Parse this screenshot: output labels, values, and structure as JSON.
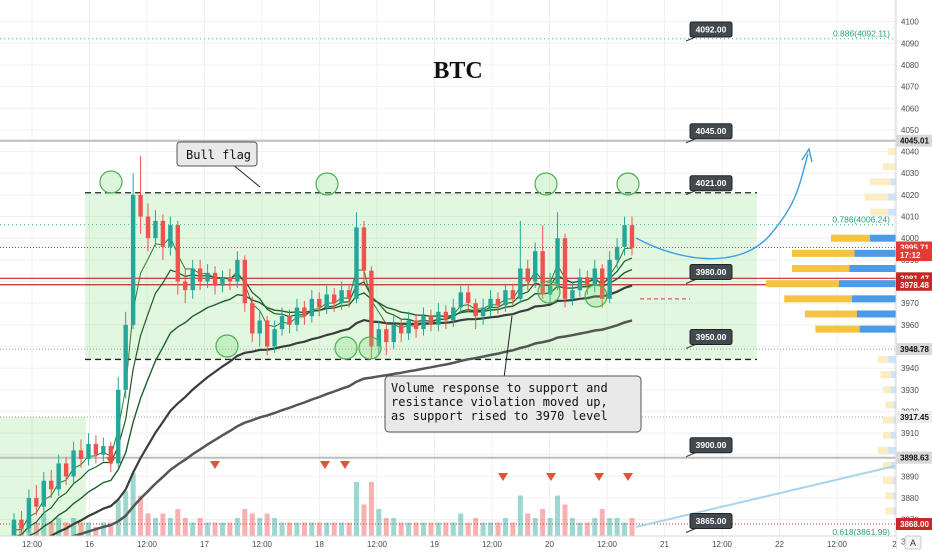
{
  "chart_data": {
    "type": "candlestick",
    "title": "BTC",
    "ylim": [
      3856,
      4110
    ],
    "y_ticks": [
      3860,
      3870,
      3880,
      3890,
      3900,
      3910,
      3920,
      3930,
      3940,
      3950,
      3960,
      3970,
      3980,
      3990,
      4000,
      4010,
      4020,
      4030,
      4040,
      4050,
      4060,
      4070,
      4080,
      4090,
      4100
    ],
    "x_ticks": [
      "12:00",
      "16",
      "12:00",
      "17",
      "12:00",
      "18",
      "12:00",
      "19",
      "12:00",
      "20",
      "12:00",
      "21",
      "12:00",
      "22",
      "12:00",
      "2"
    ],
    "grid": true,
    "price_scale_labels": [
      {
        "value": 4045.01,
        "text": "4045.01",
        "bg": "#d9d9d9",
        "fg": "#111111"
      },
      {
        "value": 3995.71,
        "text": "3995.71",
        "bg": "#e53935",
        "fg": "#ffffff"
      },
      {
        "value": 3992.2,
        "text": "17:12",
        "bg": "#e53935",
        "fg": "#ffffff"
      },
      {
        "value": 3981.47,
        "text": "3981.47",
        "bg": "#c62828",
        "fg": "#ffffff"
      },
      {
        "value": 3978.48,
        "text": "3978.48",
        "bg": "#c62828",
        "fg": "#ffffff"
      },
      {
        "value": 3948.78,
        "text": "3948.78",
        "bg": "#d9d9d9",
        "fg": "#111111"
      },
      {
        "value": 3917.45,
        "text": "3917.45",
        "bg": "#eeeeee",
        "fg": "#111111"
      },
      {
        "value": 3898.63,
        "text": "3898.63",
        "bg": "#d9d9d9",
        "fg": "#111111"
      },
      {
        "value": 3868.0,
        "text": "3868.00",
        "bg": "#c62828",
        "fg": "#ffffff"
      }
    ],
    "level_flags": [
      {
        "value": 4092.0,
        "text": "4092.00"
      },
      {
        "value": 4045.0,
        "text": "4045.00"
      },
      {
        "value": 4021.0,
        "text": "4021.00"
      },
      {
        "value": 3980.0,
        "text": "3980.00"
      },
      {
        "value": 3950.0,
        "text": "3950.00"
      },
      {
        "value": 3900.0,
        "text": "3900.00"
      },
      {
        "value": 3865.0,
        "text": "3865.00"
      }
    ],
    "fib_levels": [
      {
        "value": 4092.11,
        "text": "0.886(4092.11)"
      },
      {
        "value": 4006.24,
        "text": "0.786(4006.24)"
      },
      {
        "value": 3861.99,
        "text": "0.618(3861.99)"
      }
    ],
    "horizontal_lines": [
      {
        "value": 4045.01,
        "color": "#bdbdbd",
        "width": 2,
        "dash": ""
      },
      {
        "value": 4021.0,
        "color": "#222222",
        "width": 1.3,
        "dash": "6,4"
      },
      {
        "value": 3944.0,
        "color": "#222222",
        "width": 1.3,
        "dash": "6,4"
      },
      {
        "value": 3981.47,
        "color": "#c62828",
        "width": 1.2,
        "dash": ""
      },
      {
        "value": 3978.48,
        "color": "#c62828",
        "width": 1.2,
        "dash": ""
      },
      {
        "value": 3898.63,
        "color": "#bdbdbd",
        "width": 2,
        "dash": ""
      },
      {
        "value": 3868.0,
        "color": "#c62828",
        "width": 1,
        "dash": "1,2"
      },
      {
        "value": 3917.45,
        "color": "#9e9e9e",
        "width": 1,
        "dash": "1,2"
      },
      {
        "value": 3948.78,
        "color": "#9e9e9e",
        "width": 1,
        "dash": "1,2"
      },
      {
        "value": 3995.71,
        "color": "#e53935",
        "width": 1,
        "dash": "1,2"
      }
    ],
    "annotations": [
      {
        "text": "Bull flag"
      },
      {
        "lines": [
          "Volume response to support and",
          "resistance violation moved up,",
          "as support rised to 3970 level"
        ]
      }
    ],
    "candles": [
      {
        "o": 3862,
        "c": 3870,
        "h": 3873,
        "l": 3860
      },
      {
        "o": 3870,
        "c": 3866,
        "h": 3874,
        "l": 3862
      },
      {
        "o": 3866,
        "c": 3880,
        "h": 3884,
        "l": 3864
      },
      {
        "o": 3880,
        "c": 3876,
        "h": 3886,
        "l": 3872
      },
      {
        "o": 3876,
        "c": 3888,
        "h": 3892,
        "l": 3873
      },
      {
        "o": 3888,
        "c": 3884,
        "h": 3893,
        "l": 3880
      },
      {
        "o": 3884,
        "c": 3896,
        "h": 3900,
        "l": 3881
      },
      {
        "o": 3896,
        "c": 3890,
        "h": 3899,
        "l": 3886
      },
      {
        "o": 3890,
        "c": 3902,
        "h": 3906,
        "l": 3887
      },
      {
        "o": 3902,
        "c": 3898,
        "h": 3907,
        "l": 3894
      },
      {
        "o": 3898,
        "c": 3905,
        "h": 3910,
        "l": 3895
      },
      {
        "o": 3905,
        "c": 3900,
        "h": 3909,
        "l": 3896
      },
      {
        "o": 3900,
        "c": 3904,
        "h": 3908,
        "l": 3897
      },
      {
        "o": 3904,
        "c": 3896,
        "h": 3906,
        "l": 3892
      },
      {
        "o": 3896,
        "c": 3930,
        "h": 3936,
        "l": 3894
      },
      {
        "o": 3930,
        "c": 3960,
        "h": 3966,
        "l": 3926
      },
      {
        "o": 3960,
        "c": 4020,
        "h": 4030,
        "l": 3958
      },
      {
        "o": 4020,
        "c": 4010,
        "h": 4038,
        "l": 4002
      },
      {
        "o": 4010,
        "c": 4000,
        "h": 4016,
        "l": 3994
      },
      {
        "o": 4000,
        "c": 4008,
        "h": 4013,
        "l": 3996
      },
      {
        "o": 4008,
        "c": 3996,
        "h": 4011,
        "l": 3990
      },
      {
        "o": 3996,
        "c": 4006,
        "h": 4010,
        "l": 3992
      },
      {
        "o": 4006,
        "c": 3980,
        "h": 4008,
        "l": 3974
      },
      {
        "o": 3980,
        "c": 3976,
        "h": 3986,
        "l": 3970
      },
      {
        "o": 3976,
        "c": 3986,
        "h": 3990,
        "l": 3972
      },
      {
        "o": 3986,
        "c": 3980,
        "h": 3990,
        "l": 3976
      },
      {
        "o": 3980,
        "c": 3984,
        "h": 3988,
        "l": 3977
      },
      {
        "o": 3984,
        "c": 3978,
        "h": 3987,
        "l": 3974
      },
      {
        "o": 3978,
        "c": 3982,
        "h": 3985,
        "l": 3975
      },
      {
        "o": 3982,
        "c": 3980,
        "h": 3986,
        "l": 3976
      },
      {
        "o": 3980,
        "c": 3990,
        "h": 3994,
        "l": 3977
      },
      {
        "o": 3990,
        "c": 3970,
        "h": 3992,
        "l": 3966
      },
      {
        "o": 3970,
        "c": 3956,
        "h": 3973,
        "l": 3952
      },
      {
        "o": 3956,
        "c": 3962,
        "h": 3966,
        "l": 3950
      },
      {
        "o": 3962,
        "c": 3950,
        "h": 3964,
        "l": 3946
      },
      {
        "o": 3950,
        "c": 3958,
        "h": 3962,
        "l": 3947
      },
      {
        "o": 3958,
        "c": 3964,
        "h": 3968,
        "l": 3955
      },
      {
        "o": 3964,
        "c": 3960,
        "h": 3967,
        "l": 3956
      },
      {
        "o": 3960,
        "c": 3968,
        "h": 3972,
        "l": 3957
      },
      {
        "o": 3968,
        "c": 3964,
        "h": 3971,
        "l": 3960
      },
      {
        "o": 3964,
        "c": 3972,
        "h": 3976,
        "l": 3961
      },
      {
        "o": 3972,
        "c": 3968,
        "h": 3975,
        "l": 3964
      },
      {
        "o": 3968,
        "c": 3974,
        "h": 3978,
        "l": 3965
      },
      {
        "o": 3974,
        "c": 3970,
        "h": 3977,
        "l": 3966
      },
      {
        "o": 3970,
        "c": 3976,
        "h": 3980,
        "l": 3967
      },
      {
        "o": 3976,
        "c": 3972,
        "h": 3979,
        "l": 3968
      },
      {
        "o": 3972,
        "c": 4005,
        "h": 4012,
        "l": 3970
      },
      {
        "o": 4005,
        "c": 3985,
        "h": 4008,
        "l": 3980
      },
      {
        "o": 3985,
        "c": 3950,
        "h": 3987,
        "l": 3944
      },
      {
        "o": 3950,
        "c": 3958,
        "h": 3962,
        "l": 3946
      },
      {
        "o": 3958,
        "c": 3952,
        "h": 3961,
        "l": 3946
      },
      {
        "o": 3952,
        "c": 3960,
        "h": 3964,
        "l": 3949
      },
      {
        "o": 3960,
        "c": 3956,
        "h": 3963,
        "l": 3952
      },
      {
        "o": 3956,
        "c": 3962,
        "h": 3966,
        "l": 3953
      },
      {
        "o": 3962,
        "c": 3958,
        "h": 3965,
        "l": 3954
      },
      {
        "o": 3958,
        "c": 3964,
        "h": 3968,
        "l": 3955
      },
      {
        "o": 3964,
        "c": 3960,
        "h": 3967,
        "l": 3957
      },
      {
        "o": 3960,
        "c": 3966,
        "h": 3970,
        "l": 3957
      },
      {
        "o": 3966,
        "c": 3962,
        "h": 3969,
        "l": 3958
      },
      {
        "o": 3962,
        "c": 3968,
        "h": 3972,
        "l": 3959
      },
      {
        "o": 3968,
        "c": 3975,
        "h": 3978,
        "l": 3965
      },
      {
        "o": 3975,
        "c": 3970,
        "h": 3978,
        "l": 3966
      },
      {
        "o": 3970,
        "c": 3964,
        "h": 3972,
        "l": 3958
      },
      {
        "o": 3964,
        "c": 3968,
        "h": 3972,
        "l": 3960
      },
      {
        "o": 3968,
        "c": 3972,
        "h": 3976,
        "l": 3964
      },
      {
        "o": 3972,
        "c": 3969,
        "h": 3975,
        "l": 3965
      },
      {
        "o": 3969,
        "c": 3976,
        "h": 3979,
        "l": 3966
      },
      {
        "o": 3976,
        "c": 3972,
        "h": 3979,
        "l": 3969
      },
      {
        "o": 3972,
        "c": 3986,
        "h": 4008,
        "l": 3970
      },
      {
        "o": 3986,
        "c": 3980,
        "h": 3990,
        "l": 3976
      },
      {
        "o": 3980,
        "c": 3994,
        "h": 3998,
        "l": 3977
      },
      {
        "o": 3994,
        "c": 3974,
        "h": 4006,
        "l": 3972
      },
      {
        "o": 3974,
        "c": 3978,
        "h": 3984,
        "l": 3970
      },
      {
        "o": 3978,
        "c": 4000,
        "h": 4012,
        "l": 3976
      },
      {
        "o": 4000,
        "c": 3972,
        "h": 4002,
        "l": 3968
      },
      {
        "o": 3972,
        "c": 3976,
        "h": 3980,
        "l": 3969
      },
      {
        "o": 3976,
        "c": 3982,
        "h": 3986,
        "l": 3973
      },
      {
        "o": 3982,
        "c": 3978,
        "h": 3985,
        "l": 3974
      },
      {
        "o": 3978,
        "c": 3986,
        "h": 3990,
        "l": 3975
      },
      {
        "o": 3986,
        "c": 3972,
        "h": 3988,
        "l": 3968
      },
      {
        "o": 3972,
        "c": 3990,
        "h": 3994,
        "l": 3970
      },
      {
        "o": 3990,
        "c": 3996,
        "h": 4000,
        "l": 3986
      },
      {
        "o": 3996,
        "c": 4006,
        "h": 4010,
        "l": 3992
      },
      {
        "o": 4006,
        "c": 3995.71,
        "h": 4010,
        "l": 3992
      }
    ],
    "volumes": [
      3,
      2,
      4,
      3,
      5,
      3,
      4,
      3,
      4,
      3,
      3,
      2,
      3,
      3,
      8,
      10,
      14,
      9,
      5,
      4,
      5,
      4,
      6,
      4,
      3,
      4,
      3,
      3,
      3,
      3,
      4,
      6,
      5,
      4,
      5,
      4,
      3,
      3,
      3,
      3,
      3,
      3,
      3,
      3,
      3,
      3,
      12,
      7,
      12,
      6,
      4,
      4,
      3,
      3,
      3,
      3,
      3,
      3,
      3,
      3,
      5,
      3,
      4,
      3,
      3,
      3,
      4,
      3,
      9,
      5,
      4,
      6,
      4,
      9,
      7,
      4,
      3,
      3,
      4,
      6,
      4,
      4,
      3,
      4
    ],
    "volume_profile_value_area": [
      {
        "value": 4000,
        "buy": 1.5,
        "sell": 1.0
      },
      {
        "value": 3993,
        "buy": 2.4,
        "sell": 1.6
      },
      {
        "value": 3986,
        "buy": 2.2,
        "sell": 1.8
      },
      {
        "value": 3979,
        "buy": 2.8,
        "sell": 2.2
      },
      {
        "value": 3972,
        "buy": 2.6,
        "sell": 1.7
      },
      {
        "value": 3965,
        "buy": 2.0,
        "sell": 1.5
      },
      {
        "value": 3958,
        "buy": 1.7,
        "sell": 1.4
      }
    ],
    "volume_profile_outside": [
      {
        "value": 4040,
        "buy": 0.3,
        "sell": 0.0
      },
      {
        "value": 4033,
        "buy": 0.5,
        "sell": 0.0
      },
      {
        "value": 4026,
        "buy": 0.8,
        "sell": 0.2
      },
      {
        "value": 4019,
        "buy": 0.9,
        "sell": 0.3
      },
      {
        "value": 4012,
        "buy": 0.7,
        "sell": 0.3
      },
      {
        "value": 3944,
        "buy": 0.4,
        "sell": 0.3
      },
      {
        "value": 3937,
        "buy": 0.4,
        "sell": 0.2
      },
      {
        "value": 3930,
        "buy": 0.3,
        "sell": 0.2
      },
      {
        "value": 3923,
        "buy": 0.3,
        "sell": 0.1
      },
      {
        "value": 3916,
        "buy": 0.4,
        "sell": 0.1
      },
      {
        "value": 3909,
        "buy": 0.3,
        "sell": 0.2
      },
      {
        "value": 3902,
        "buy": 0.4,
        "sell": 0.3
      },
      {
        "value": 3895,
        "buy": 0.3,
        "sell": 0.2
      },
      {
        "value": 3888,
        "buy": 0.4,
        "sell": 0.1
      },
      {
        "value": 3881,
        "buy": 0.3,
        "sell": 0.1
      },
      {
        "value": 3874,
        "buy": 0.3,
        "sell": 0.1
      }
    ]
  },
  "ui": {
    "auto_button_label": "A",
    "colors": {
      "bull": "#26a69a",
      "bear": "#ef5350",
      "flag_zone": "rgba(120, 220, 110, 0.22)",
      "vp_buy": "#f5c242",
      "vp_sell": "#4a9be8",
      "arrow_blue": "#3aa0e0",
      "signal_arrow": "#e0533a",
      "ma_dark": "#3c3c3c",
      "ma_green": "#1f5f2a"
    }
  }
}
